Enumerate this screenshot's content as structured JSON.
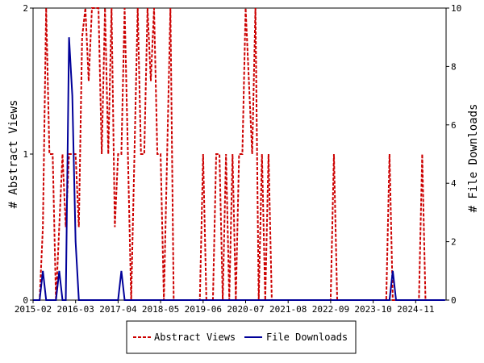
{
  "chart_data": {
    "type": "line",
    "title": "",
    "xlabel": "",
    "ylabel_left": "# Abstract Views",
    "ylabel_right": "# File Downloads",
    "ylim_left": [
      0,
      2
    ],
    "ylim_right": [
      0,
      10
    ],
    "yticks_left": [
      "0",
      "1",
      "2"
    ],
    "yticks_right": [
      "0",
      "2",
      "4",
      "6",
      "8",
      "10"
    ],
    "x_tick_labels": [
      "2015-02",
      "2016-03",
      "2017-04",
      "2018-05",
      "2019-06",
      "2020-07",
      "2021-08",
      "2022-09",
      "2023-10",
      "2024-11"
    ],
    "grid": false,
    "legend_position": "bottom-center",
    "colors": {
      "abstract_views": "#cc0000",
      "file_downloads": "#000099"
    },
    "series": [
      {
        "name": "Abstract Views",
        "axis": "left",
        "style": "dashed",
        "points": [
          [
            "2015-02",
            0
          ],
          [
            "2015-03",
            0
          ],
          [
            "2015-04",
            0
          ],
          [
            "2015-05",
            0.5
          ],
          [
            "2015-06",
            2
          ],
          [
            "2015-07",
            1
          ],
          [
            "2015-08",
            1
          ],
          [
            "2015-09",
            0
          ],
          [
            "2015-10",
            0.5
          ],
          [
            "2015-11",
            1
          ],
          [
            "2015-12",
            0.5
          ],
          [
            "2016-01",
            1
          ],
          [
            "2016-02",
            1
          ],
          [
            "2016-03",
            1
          ],
          [
            "2016-04",
            0.5
          ],
          [
            "2016-05",
            1.8
          ],
          [
            "2016-06",
            2
          ],
          [
            "2016-07",
            1.5
          ],
          [
            "2016-08",
            2
          ],
          [
            "2016-09",
            2
          ],
          [
            "2016-10",
            2
          ],
          [
            "2016-11",
            1
          ],
          [
            "2016-12",
            2
          ],
          [
            "2017-01",
            1
          ],
          [
            "2017-02",
            2
          ],
          [
            "2017-03",
            0.5
          ],
          [
            "2017-04",
            1
          ],
          [
            "2017-05",
            1
          ],
          [
            "2017-06",
            2
          ],
          [
            "2017-07",
            1
          ],
          [
            "2017-08",
            0
          ],
          [
            "2017-09",
            1
          ],
          [
            "2017-10",
            2
          ],
          [
            "2017-11",
            1
          ],
          [
            "2017-12",
            1
          ],
          [
            "2018-01",
            2
          ],
          [
            "2018-02",
            1.5
          ],
          [
            "2018-03",
            2
          ],
          [
            "2018-04",
            1
          ],
          [
            "2018-05",
            1
          ],
          [
            "2018-06",
            0
          ],
          [
            "2018-07",
            1
          ],
          [
            "2018-08",
            2
          ],
          [
            "2018-09",
            0
          ],
          [
            "2018-10",
            0
          ],
          [
            "2019-06",
            1
          ],
          [
            "2019-08",
            0
          ],
          [
            "2019-10",
            1
          ],
          [
            "2019-11",
            1
          ],
          [
            "2019-12",
            0
          ],
          [
            "2020-01",
            1
          ],
          [
            "2020-02",
            0
          ],
          [
            "2020-03",
            1
          ],
          [
            "2020-04",
            0
          ],
          [
            "2020-05",
            1
          ],
          [
            "2020-06",
            1
          ],
          [
            "2020-07",
            2
          ],
          [
            "2020-08",
            1.5
          ],
          [
            "2020-09",
            1
          ],
          [
            "2020-10",
            2
          ],
          [
            "2020-11",
            0
          ],
          [
            "2020-12",
            1
          ],
          [
            "2021-01",
            0
          ],
          [
            "2021-02",
            1
          ],
          [
            "2021-03",
            0
          ],
          [
            "2022-10",
            1
          ],
          [
            "2022-11",
            0
          ],
          [
            "2024-03",
            1
          ],
          [
            "2024-04",
            0
          ],
          [
            "2025-01",
            1
          ]
        ]
      },
      {
        "name": "File Downloads",
        "axis": "right",
        "style": "solid",
        "points": [
          [
            "2015-05",
            1
          ],
          [
            "2015-10",
            1
          ],
          [
            "2016-01",
            9
          ],
          [
            "2016-02",
            7
          ],
          [
            "2016-03",
            2
          ],
          [
            "2017-05",
            1
          ],
          [
            "2024-04",
            1
          ]
        ]
      }
    ]
  }
}
